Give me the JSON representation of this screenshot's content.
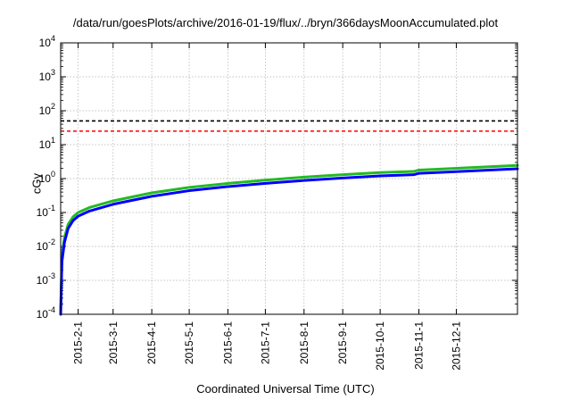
{
  "chart_data": {
    "type": "line",
    "title": "/data/run/goesPlots/archive/2016-01-19/flux/../bryn/366daysMoonAccumulated.plot",
    "xlabel": "Coordinated Universal Time (UTC)",
    "ylabel": "cGy",
    "y_scale": "log",
    "ylim": [
      0.0001,
      10000
    ],
    "xlim": [
      "2015-01-18",
      "2016-01-19"
    ],
    "grid": true,
    "legend": "none",
    "x_ticks": [
      "2015-2-1",
      "2015-3-1",
      "2015-4-1",
      "2015-5-1",
      "2015-6-1",
      "2015-7-1",
      "2015-8-1",
      "2015-9-1",
      "2015-10-1",
      "2015-11-1",
      "2015-12-1"
    ],
    "x_tick_dates": [
      "2015-02-01",
      "2015-03-01",
      "2015-04-01",
      "2015-05-01",
      "2015-06-01",
      "2015-07-01",
      "2015-08-01",
      "2015-09-01",
      "2015-10-01",
      "2015-11-01",
      "2015-12-01"
    ],
    "y_ticks": [
      {
        "base": "10",
        "exp": "-4",
        "value": 0.0001
      },
      {
        "base": "10",
        "exp": "-3",
        "value": 0.001
      },
      {
        "base": "10",
        "exp": "-2",
        "value": 0.01
      },
      {
        "base": "10",
        "exp": "-1",
        "value": 0.1
      },
      {
        "base": "10",
        "exp": "0",
        "value": 1
      },
      {
        "base": "10",
        "exp": "1",
        "value": 10
      },
      {
        "base": "10",
        "exp": "2",
        "value": 100
      },
      {
        "base": "10",
        "exp": "3",
        "value": 1000
      },
      {
        "base": "10",
        "exp": "4",
        "value": 10000
      }
    ],
    "reference_lines": [
      {
        "value": 50,
        "color": "#000000",
        "style": "dashed"
      },
      {
        "value": 25,
        "color": "#ff0000",
        "style": "dashed"
      }
    ],
    "series": [
      {
        "color": "#22bb22",
        "x": [
          "2015-01-18",
          "2015-01-19",
          "2015-01-21",
          "2015-01-24",
          "2015-01-28",
          "2015-02-01",
          "2015-02-10",
          "2015-03-01",
          "2015-04-01",
          "2015-05-01",
          "2015-06-01",
          "2015-07-01",
          "2015-08-01",
          "2015-09-01",
          "2015-10-01",
          "2015-10-28",
          "2015-11-01",
          "2015-12-01",
          "2016-01-19"
        ],
        "y": [
          0.0001,
          0.005,
          0.018,
          0.045,
          0.075,
          0.1,
          0.14,
          0.22,
          0.38,
          0.55,
          0.72,
          0.9,
          1.1,
          1.3,
          1.5,
          1.62,
          1.78,
          2.0,
          2.45
        ]
      },
      {
        "color": "#0000ff",
        "x": [
          "2015-01-18",
          "2015-01-19",
          "2015-01-21",
          "2015-01-24",
          "2015-01-28",
          "2015-02-01",
          "2015-02-10",
          "2015-03-01",
          "2015-04-01",
          "2015-05-01",
          "2015-06-01",
          "2015-07-01",
          "2015-08-01",
          "2015-09-01",
          "2015-10-01",
          "2015-10-28",
          "2015-11-01",
          "2015-12-01",
          "2016-01-19"
        ],
        "y": [
          0.0001,
          0.0035,
          0.013,
          0.034,
          0.058,
          0.078,
          0.11,
          0.175,
          0.3,
          0.44,
          0.58,
          0.72,
          0.88,
          1.04,
          1.2,
          1.3,
          1.43,
          1.6,
          1.95
        ]
      }
    ]
  }
}
